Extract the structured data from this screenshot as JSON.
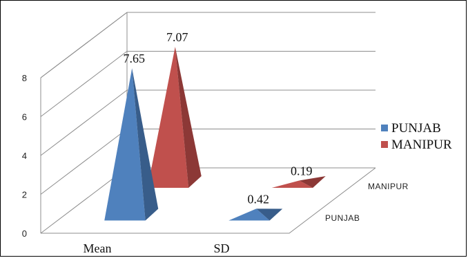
{
  "chart_data": {
    "type": "bar",
    "style": "3d-pyramid",
    "categories": [
      "Mean",
      "SD"
    ],
    "depth_labels": [
      "PUNJAB",
      "MANIPUR"
    ],
    "series": [
      {
        "name": "PUNJAB",
        "values": [
          7.65,
          0.42
        ],
        "color": "#4f81bd",
        "side_color": "#385d8a",
        "data_labels": [
          "7.65",
          "0.42"
        ]
      },
      {
        "name": "MANIPUR",
        "values": [
          7.07,
          0.19
        ],
        "color": "#c0504d",
        "side_color": "#8c3836",
        "data_labels": [
          "7.07",
          "0.19"
        ]
      }
    ],
    "yticks": [
      "0",
      "2",
      "4",
      "6",
      "8"
    ],
    "ylim": [
      0,
      8
    ],
    "grid": true,
    "legend_position": "right"
  }
}
